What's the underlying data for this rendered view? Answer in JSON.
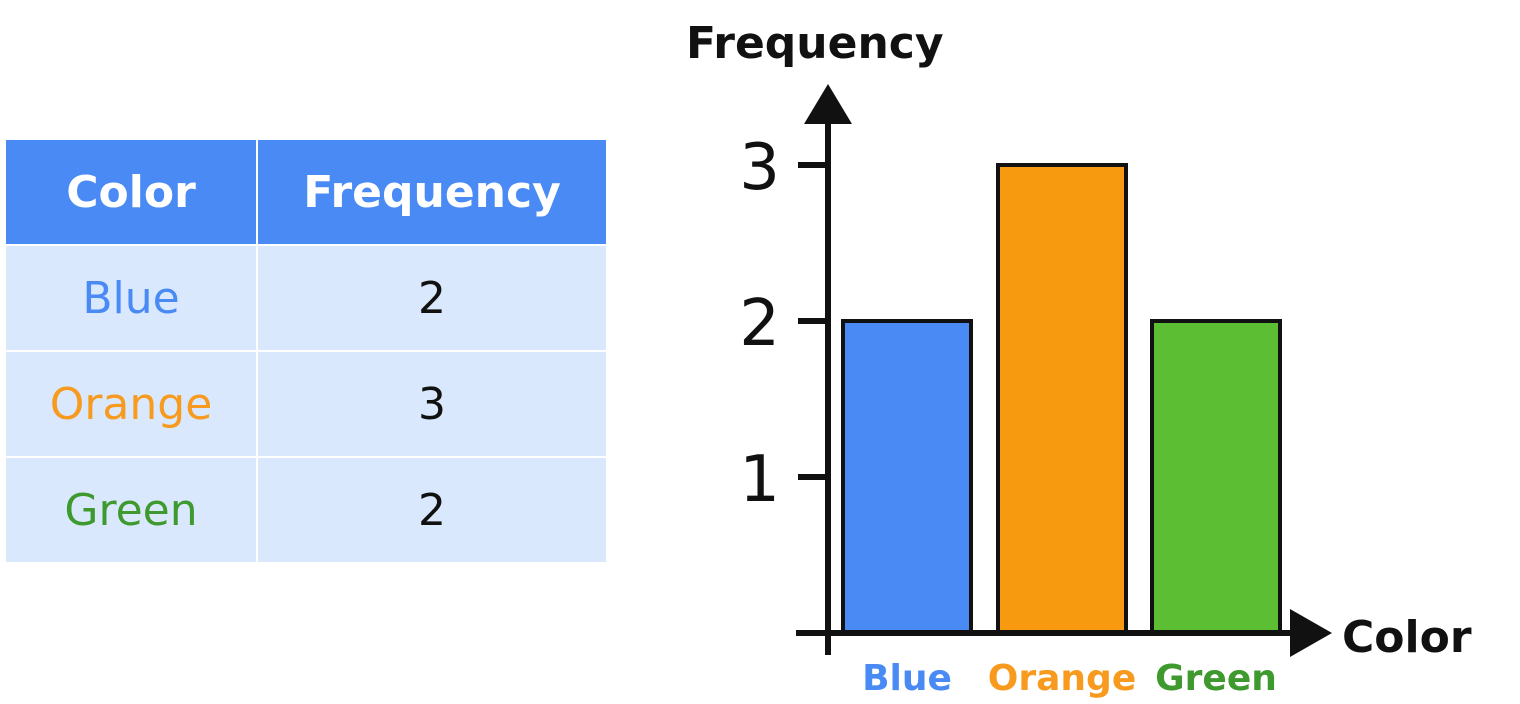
{
  "table": {
    "headers": [
      "Color",
      "Frequency"
    ],
    "rows": [
      {
        "color": "Blue",
        "frequency": "2",
        "text_color": "#4a8af4"
      },
      {
        "color": "Orange",
        "frequency": "3",
        "text_color": "#f79a1e"
      },
      {
        "color": "Green",
        "frequency": "2",
        "text_color": "#3e9a2e"
      }
    ]
  },
  "chart_data": {
    "type": "bar",
    "categories": [
      "Blue",
      "Orange",
      "Green"
    ],
    "values": [
      2,
      3,
      2
    ],
    "colors": [
      "#4a8af4",
      "#f89a10",
      "#5cbf33"
    ],
    "label_colors": [
      "#4a8af4",
      "#f79a1e",
      "#3e9a2e"
    ],
    "title": "",
    "xlabel": "Color",
    "ylabel": "Frequency",
    "yticks": [
      1,
      2,
      3
    ],
    "ylim": [
      0,
      3
    ],
    "grid": false,
    "legend": "none"
  }
}
